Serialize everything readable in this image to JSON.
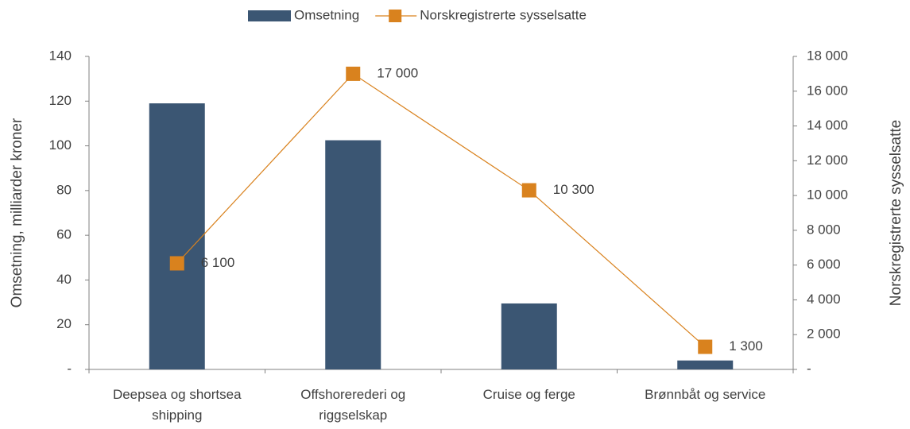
{
  "chart_data": {
    "type": "bar_line",
    "categories": [
      "Deepsea og shortsea shipping",
      "Offshorerederi og riggselskap",
      "Cruise og ferge",
      "Brønnbåt og service"
    ],
    "series": [
      {
        "name": "Omsetning",
        "type": "bar",
        "color": "#3b5673",
        "values": [
          119,
          102.5,
          29.5,
          4
        ]
      },
      {
        "name": "Norskregistrerte sysselsatte",
        "type": "line",
        "axis": "y2",
        "color": "#d9821e",
        "values": [
          6100,
          17000,
          10300,
          1300
        ],
        "value_labels": [
          "6 100",
          "17 000",
          "10 300",
          "1 300"
        ]
      }
    ],
    "ylabel": "Omsetning, milliarder kroner",
    "y2label": "Norskregistrerte sysselsatte",
    "ylim": [
      0,
      140
    ],
    "yticks": [
      {
        "value": 0,
        "label": "-"
      },
      20,
      40,
      60,
      80,
      100,
      120,
      140
    ],
    "y2lim": [
      0,
      18000
    ],
    "y2ticks": [
      {
        "value": 0,
        "label": "-"
      },
      {
        "value": 2000,
        "label": "2 000"
      },
      {
        "value": 4000,
        "label": "4 000"
      },
      {
        "value": 6000,
        "label": "6 000"
      },
      {
        "value": 8000,
        "label": "8 000"
      },
      {
        "value": 10000,
        "label": "10 000"
      },
      {
        "value": 12000,
        "label": "12 000"
      },
      {
        "value": 14000,
        "label": "14 000"
      },
      {
        "value": 16000,
        "label": "16 000"
      },
      {
        "value": 18000,
        "label": "18 000"
      }
    ],
    "legend": "top"
  }
}
